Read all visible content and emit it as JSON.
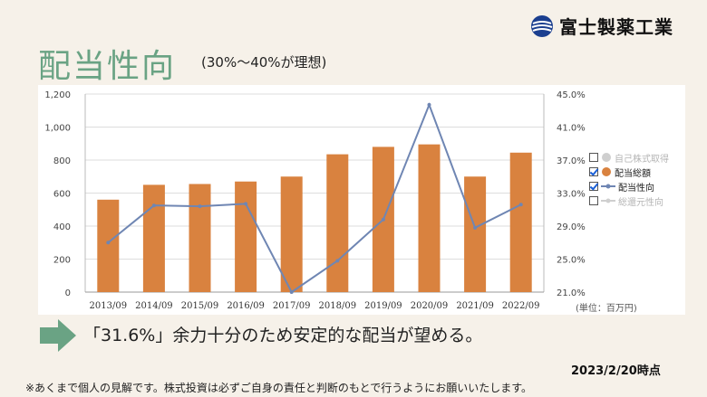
{
  "logo": {
    "name": "富士製薬工業",
    "icon": "globe-logo-icon"
  },
  "title": "配当性向",
  "subtitle": "(30%〜40%が理想)",
  "legend": [
    {
      "label": "自己株式取得",
      "checked": false,
      "marker": "circle",
      "color": "#cfcfcf"
    },
    {
      "label": "配当総額",
      "checked": true,
      "marker": "circle",
      "color": "#d9823f"
    },
    {
      "label": "配当性向",
      "checked": true,
      "marker": "line-dot",
      "color": "#6f86b3"
    },
    {
      "label": "総還元性向",
      "checked": false,
      "marker": "line-dot",
      "color": "#cfcfcf"
    }
  ],
  "unit_label": "(単位：百万円)",
  "message": "「31.6%」余力十分のため安定的な配当が望める。",
  "date": "2023/2/20時点",
  "disclaimer": "※あくまで個人の見解です。株式投資は必ずご自身の責任と判断のもとで行うようにお願いいたします。",
  "colors": {
    "bar": "#d9823f",
    "line": "#6f86b3",
    "accent": "#6aa384"
  },
  "chart_data": {
    "type": "bar",
    "categories": [
      "2013/09",
      "2014/09",
      "2015/09",
      "2016/09",
      "2017/09",
      "2018/09",
      "2019/09",
      "2020/09",
      "2021/09",
      "2022/09"
    ],
    "series": [
      {
        "name": "配当総額",
        "type": "bar",
        "axis": "left",
        "values": [
          560,
          650,
          655,
          670,
          700,
          835,
          880,
          895,
          700,
          845
        ]
      },
      {
        "name": "配当性向",
        "type": "line",
        "axis": "right",
        "values": [
          27.0,
          31.5,
          31.4,
          31.7,
          21.0,
          24.8,
          29.8,
          43.7,
          28.8,
          31.6
        ]
      }
    ],
    "left_axis": {
      "ylim": [
        0,
        1200
      ],
      "ticks": [
        "0",
        "200",
        "400",
        "600",
        "800",
        "1,000",
        "1,200"
      ]
    },
    "right_axis": {
      "ylim": [
        21.0,
        45.0
      ],
      "ticks": [
        "21.0%",
        "25.0%",
        "29.0%",
        "33.0%",
        "37.0%",
        "41.0%",
        "45.0%"
      ]
    },
    "grid": true,
    "legend_position": "right"
  }
}
